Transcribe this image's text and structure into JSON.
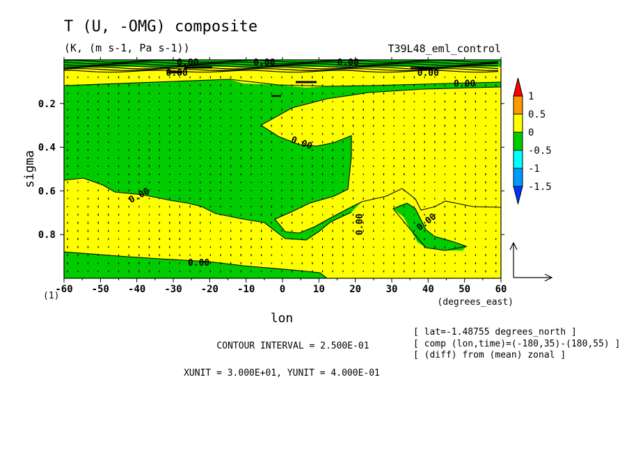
{
  "chart_data": {
    "type": "heatmap",
    "title": "T (U, -OMG) composite",
    "subtitle": "(K, (m s-1, Pa s-1))",
    "experiment": "T39L48_eml_control",
    "xlabel": "lon",
    "xunit": "(degrees_east)",
    "ylabel": "sigma",
    "xlim": [
      -60,
      60
    ],
    "ylim": [
      1.0,
      0.0
    ],
    "x_ticks": [
      -60,
      -50,
      -40,
      -30,
      -20,
      -10,
      0,
      10,
      20,
      30,
      40,
      50,
      60
    ],
    "x_tick_labels": [
      "-60",
      "-50",
      "-40",
      "-30",
      "-20",
      "-10",
      "0",
      "10",
      "20",
      "30",
      "40",
      "50",
      "60"
    ],
    "y_ticks": [
      0.2,
      0.4,
      0.6,
      0.8
    ],
    "y_tick_labels": [
      "0.2",
      "0.4",
      "0.6",
      "0.8"
    ],
    "corner_label": "(1)",
    "contour_labels": [
      {
        "text": "0.00",
        "lon": -26,
        "sigma": 0.0
      },
      {
        "text": "0.00",
        "lon": -5,
        "sigma": 0.0
      },
      {
        "text": "0.00",
        "lon": 18,
        "sigma": 0.0
      },
      {
        "text": "0.00",
        "lon": -29,
        "sigma": 0.06
      },
      {
        "text": "0.00",
        "lon": 40,
        "sigma": 0.06
      },
      {
        "text": "0.00",
        "lon": 50,
        "sigma": 0.11
      },
      {
        "text": "0.00",
        "lon": 5,
        "sigma": 0.38
      },
      {
        "text": "0.00",
        "lon": -39,
        "sigma": 0.62
      },
      {
        "text": "0.00",
        "lon": 22,
        "sigma": 0.74
      },
      {
        "text": "0.00",
        "lon": 40,
        "sigma": 0.74
      },
      {
        "text": "0.00",
        "lon": -23,
        "sigma": 0.93
      }
    ],
    "colorbar": {
      "levels": [
        "1",
        "0.5",
        "0",
        "-0.5",
        "-1",
        "-1.5"
      ],
      "colors": [
        "#ff0000",
        "#ff9900",
        "#ffff00",
        "#00cc00",
        "#00ffff",
        "#0099ff",
        "#0033ff"
      ]
    },
    "regions": {
      "positive_color": "#ffff00",
      "negative_color": "#00cc00"
    },
    "contour_interval": "CONTOUR INTERVAL = 2.500E-01",
    "units_line": "XUNIT = 3.000E+01, YUNIT = 4.000E-01",
    "info": [
      "[ lat=-1.48755 degrees_north ]",
      "[ comp (lon,time)=(-180,35)-(180,55) ]",
      "[ (diff) from (mean) zonal ]"
    ]
  }
}
